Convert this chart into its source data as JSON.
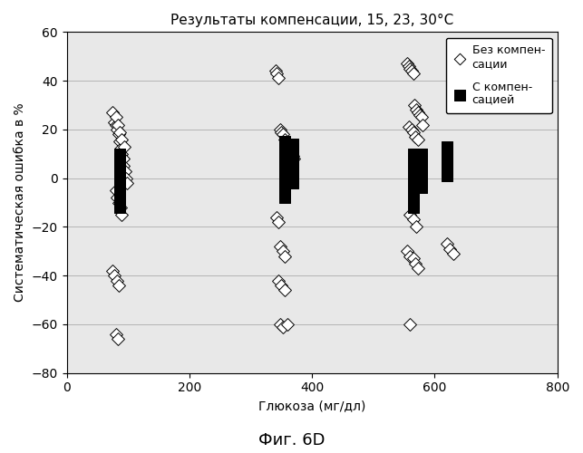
{
  "title": "Результаты компенсации, 15, 23, 30°C",
  "xlabel": "Глюкоза (мг/дл)",
  "ylabel": "Систематическая ошибка в %",
  "caption": "Фиг. 6D",
  "xlim": [
    0,
    800
  ],
  "ylim": [
    -80,
    60
  ],
  "xticks": [
    0,
    200,
    400,
    600,
    800
  ],
  "yticks": [
    -80,
    -60,
    -40,
    -20,
    0,
    20,
    40,
    60
  ],
  "legend_label1": "Без компен-\nсации",
  "legend_label2": "С компен-\nсацией",
  "bg_color": "#e8e8e8",
  "diamond_x": [
    75,
    78,
    80,
    82,
    85,
    87,
    88,
    90,
    92,
    93,
    95,
    97,
    98,
    80,
    83,
    86,
    90,
    94,
    80,
    82,
    85,
    88,
    90,
    75,
    78,
    82,
    85,
    80,
    83,
    340,
    342,
    345,
    348,
    350,
    352,
    355,
    358,
    360,
    362,
    365,
    368,
    370,
    342,
    345,
    348,
    352,
    355,
    345,
    350,
    355,
    348,
    352,
    360,
    555,
    558,
    560,
    562,
    565,
    567,
    570,
    572,
    575,
    578,
    580,
    558,
    562,
    565,
    568,
    572,
    560,
    565,
    570,
    555,
    560,
    565,
    568,
    572,
    560,
    620,
    625,
    630
  ],
  "diamond_y": [
    27,
    23,
    22,
    20,
    18,
    15,
    12,
    10,
    8,
    5,
    3,
    0,
    -2,
    25,
    22,
    19,
    16,
    13,
    -5,
    -8,
    -10,
    -12,
    -15,
    -38,
    -40,
    -42,
    -44,
    -64,
    -66,
    44,
    43,
    41,
    20,
    19,
    18,
    16,
    14,
    13,
    11,
    10,
    9,
    8,
    -16,
    -18,
    -28,
    -30,
    -32,
    -42,
    -44,
    -46,
    -60,
    -61,
    -60,
    47,
    46,
    45,
    44,
    43,
    30,
    28,
    27,
    26,
    25,
    22,
    21,
    20,
    19,
    17,
    16,
    -15,
    -17,
    -20,
    -30,
    -32,
    -33,
    -35,
    -37,
    -60,
    -27,
    -29,
    -31
  ],
  "square_clusters": [
    {
      "x": 87,
      "y_values": [
        10,
        8,
        6,
        4,
        2,
        0,
        -2,
        -4,
        -6,
        -8,
        -10,
        -12
      ]
    },
    {
      "x": 355,
      "y_values": [
        15,
        13,
        11,
        9,
        7,
        5,
        3,
        1,
        0,
        -2,
        -4,
        -6,
        -8
      ]
    },
    {
      "x": 368,
      "y_values": [
        14,
        12,
        10,
        8,
        6,
        4,
        2,
        0,
        -2
      ]
    },
    {
      "x": 565,
      "y_values": [
        10,
        8,
        6,
        4,
        2,
        0,
        -2,
        -4,
        -6,
        -8,
        -10,
        -12
      ]
    },
    {
      "x": 578,
      "y_values": [
        10,
        8,
        6,
        4,
        2,
        0,
        -2,
        -4
      ]
    },
    {
      "x": 620,
      "y_values": [
        13,
        11,
        9,
        7,
        5,
        3,
        1
      ]
    }
  ]
}
